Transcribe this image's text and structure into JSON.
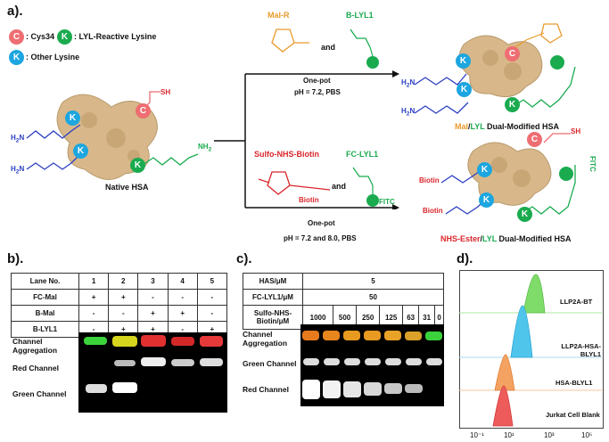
{
  "panels": {
    "a": "a).",
    "b": "b).",
    "c": "c).",
    "d": "d)."
  },
  "legend": {
    "c_letter": "C",
    "c_text": ": Cys34",
    "k_letter": "K",
    "k_reactive_text": ": LYL-Reactive Lysine",
    "k_other_text": ": Other Lysine"
  },
  "native": {
    "label": "Native HSA",
    "sh": "SH",
    "nh2": "NH",
    "nh2_sub": "2",
    "h2n": "H",
    "h2n_sub": "2",
    "h2n_n": "N"
  },
  "top_route": {
    "reagent1": "Mal-R",
    "reagent2": "B-LYL1",
    "and": "and",
    "cond1": "One-pot",
    "cond2": "pH = 7.2, PBS",
    "product_prefix": "Mal",
    "product_sep": "/",
    "product_lyl": "LYL",
    "product_suffix": " Dual-Modified HSA"
  },
  "bottom_route": {
    "reagent1": "Sulfo-NHS-Biotin",
    "reagent2": "FC-LYL1",
    "and": "and",
    "biotin": "Biotin",
    "fitc": "FITC",
    "cond1": "One-pot",
    "cond2": "pH = 7.2 and 8.0, PBS",
    "product_prefix": "NHS-Ester",
    "product_sep": "/",
    "product_lyl": "LYL",
    "product_suffix": " Dual-Modified HSA",
    "biotin_label": "Biotin",
    "fitc_label": "FITC",
    "sh": "SH"
  },
  "panel_b": {
    "header": "Lane No.",
    "lanes": [
      "1",
      "2",
      "3",
      "4",
      "5"
    ],
    "rows": [
      {
        "label": "FC-Mal",
        "vals": [
          "+",
          "+",
          "-",
          "-",
          "-"
        ]
      },
      {
        "label": "B-Mal",
        "vals": [
          "-",
          "-",
          "+",
          "+",
          "-"
        ]
      },
      {
        "label": "B-LYL1",
        "vals": [
          "-",
          "+",
          "+",
          "-",
          "+"
        ]
      }
    ],
    "channels": [
      "Channel Aggregation",
      "Red Channel",
      "Green Channel"
    ]
  },
  "panel_c": {
    "has_label": "HAS/μM",
    "has_val": "5",
    "fc_label": "FC-LYL1/μM",
    "fc_val": "50",
    "sulfo_label": "Sulfo-NHS-Biotin/μM",
    "sulfo_vals": [
      "1000",
      "500",
      "250",
      "125",
      "63",
      "31",
      "0"
    ],
    "channels": [
      "Channel Aggregation",
      "Green Channel",
      "Red Channel"
    ]
  },
  "panel_d": {
    "samples": [
      "LLP2A-BT",
      "LLP2A-HSA-BLYL1",
      "HSA-BLYL1",
      "Jurkat Cell Blank"
    ],
    "colors": [
      "#7fdc6a",
      "#4fc5ec",
      "#f4a261",
      "#ee5b5b"
    ],
    "xticks": [
      "10⁻¹",
      "10¹",
      "10³",
      "10⁵"
    ]
  }
}
